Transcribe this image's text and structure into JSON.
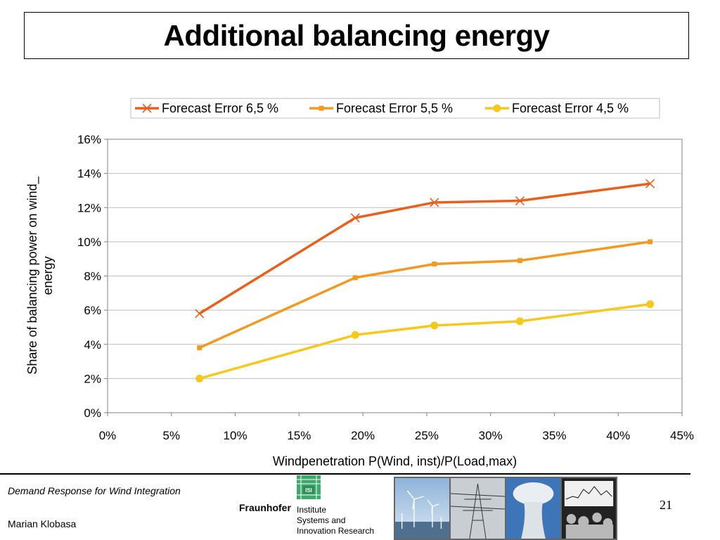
{
  "slide": {
    "title": "Additional balancing energy",
    "footer_left": "Demand Response for Wind Integration",
    "author": "Marian Klobasa",
    "page_number": "21"
  },
  "logo": {
    "mark_text": "ISI",
    "brand": "Fraunhofer",
    "institute": [
      "Institute",
      "Systems and",
      "Innovation Research"
    ]
  },
  "colors": {
    "series_1": "#E8601C",
    "series_2": "#F5981F",
    "series_3": "#F7C81B",
    "grid": "#BFBFBF",
    "logo_green": "#3FA96D"
  },
  "chart_data": {
    "type": "line",
    "xlabel": "Windpenetration P(Wind, inst)/P(Load,max)",
    "ylabel": "Share of balancing power on wind_ energy",
    "xlim": [
      0,
      45
    ],
    "ylim": [
      0,
      16
    ],
    "x_ticks": [
      "0%",
      "5%",
      "10%",
      "15%",
      "20%",
      "25%",
      "30%",
      "35%",
      "40%",
      "45%"
    ],
    "y_ticks": [
      "0%",
      "2%",
      "4%",
      "6%",
      "8%",
      "10%",
      "12%",
      "14%",
      "16%"
    ],
    "grid": "horizontal",
    "legend_position": "top",
    "series": [
      {
        "name": "Forecast Error 6,5 %",
        "marker": "x",
        "x": [
          7.2,
          19.4,
          25.6,
          32.3,
          42.5
        ],
        "values": [
          5.8,
          11.4,
          12.3,
          12.4,
          13.4
        ]
      },
      {
        "name": "Forecast Error 5,5 %",
        "marker": "square",
        "x": [
          7.2,
          19.4,
          25.6,
          32.3,
          42.5
        ],
        "values": [
          3.8,
          7.9,
          8.7,
          8.9,
          10.0
        ]
      },
      {
        "name": "Forecast Error 4,5 %",
        "marker": "circle",
        "x": [
          7.2,
          19.4,
          25.6,
          32.3,
          42.5
        ],
        "values": [
          2.0,
          4.55,
          5.1,
          5.35,
          6.35
        ]
      }
    ]
  }
}
